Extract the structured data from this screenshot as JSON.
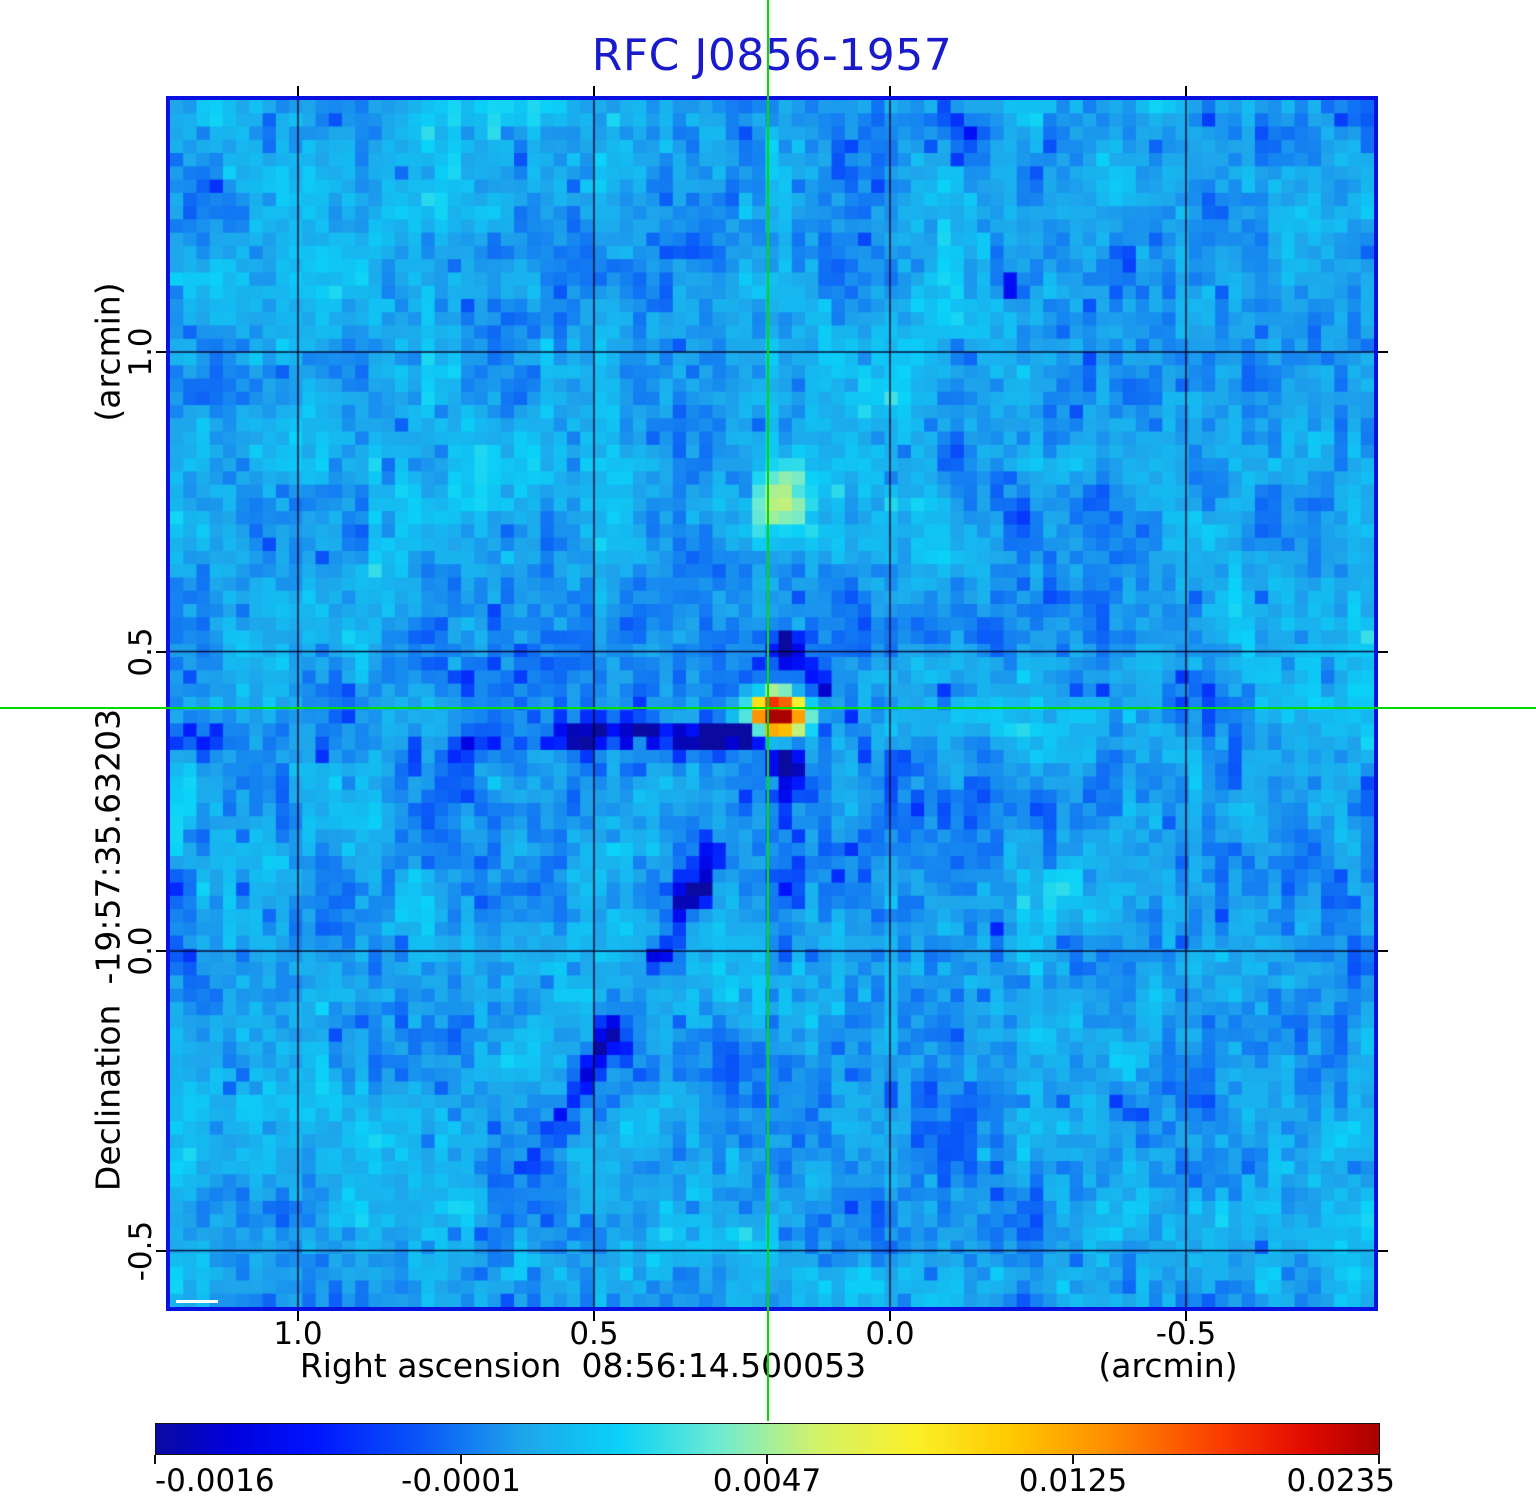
{
  "title": {
    "text": "RFC J0856-1957",
    "color": "#1a1acd"
  },
  "x_axis": {
    "name": "Right ascension",
    "coordinate": "08:56:14.500053",
    "unit": "(arcmin)",
    "ticks": [
      "1.0",
      "0.5",
      "0.0",
      "-0.5"
    ]
  },
  "y_axis": {
    "name": "Declination",
    "coordinate": "-19:57:35.63203",
    "unit": "(arcmin)",
    "ticks": [
      "1.0",
      "0.5",
      "0.0",
      "-0.5"
    ]
  },
  "colorbar": {
    "tick_labels": [
      "-0.0016",
      "-0.0001",
      "0.0047",
      "0.0125",
      "0.0235"
    ]
  },
  "chart_data": {
    "type": "heatmap",
    "title": "RFC J0856-1957",
    "xlabel": "Right ascension 08:56:14.500053 (arcmin)",
    "ylabel": "Declination -19:57:35.63203 (arcmin)",
    "x_ticks_arcmin": [
      1.0,
      0.5,
      0.0,
      -0.5
    ],
    "y_ticks_arcmin": [
      1.0,
      0.5,
      0.0,
      -0.5
    ],
    "x_range_arcmin": [
      1.22,
      -0.82
    ],
    "y_range_arcmin": [
      -0.59,
      1.42
    ],
    "grid_on": true,
    "crosshair": {
      "ra_offset_arcmin": 0.206,
      "dec_offset_arcmin": 0.406
    },
    "source": {
      "peak_value": 0.0235,
      "ra": "08:56:14.500053",
      "dec": "-19:57:35.63203"
    },
    "intensity_scale": {
      "tick_values": [
        -0.0016,
        -0.0001,
        0.0047,
        0.0125,
        0.0235
      ],
      "tick_positions": [
        0,
        0.25,
        0.5,
        0.75,
        1
      ]
    },
    "colors": {
      "title": "#1a1acd",
      "frame": "#0712e0",
      "crosshair": "#00dd00",
      "gridline": "rgba(2,2,40,0.9)",
      "tick": "#000000"
    },
    "colormap": [
      [
        0.0,
        [
          10,
          10,
          160
        ]
      ],
      [
        0.06,
        [
          0,
          0,
          220
        ]
      ],
      [
        0.13,
        [
          0,
          20,
          255
        ]
      ],
      [
        0.22,
        [
          10,
          90,
          248
        ]
      ],
      [
        0.3,
        [
          30,
          165,
          235
        ]
      ],
      [
        0.38,
        [
          10,
          210,
          248
        ]
      ],
      [
        0.46,
        [
          110,
          235,
          210
        ]
      ],
      [
        0.54,
        [
          210,
          242,
          105
        ]
      ],
      [
        0.62,
        [
          250,
          240,
          40
        ]
      ],
      [
        0.7,
        [
          255,
          200,
          0
        ]
      ],
      [
        0.78,
        [
          255,
          140,
          0
        ]
      ],
      [
        0.87,
        [
          250,
          60,
          0
        ]
      ],
      [
        0.94,
        [
          225,
          10,
          0
        ]
      ],
      [
        1.0,
        [
          170,
          0,
          0
        ]
      ]
    ],
    "axis_mapping": {
      "x_frac_at_zero": 0.598,
      "x_frac_per_arcmin": -0.4917,
      "y_frac_at_zero": 0.7051,
      "y_frac_per_arcmin": -0.4963
    },
    "render": {
      "grid": 91,
      "seed": 20230856,
      "base_p": 0.3,
      "coarse_cells": 14,
      "coarse_amp": 0.045,
      "medium_cells": 34,
      "medium_amp": 0.032,
      "cell_amp": 0.07,
      "chain": 0.5,
      "dark_cell_chance": 0.05,
      "dark_cell_drop": 0.05,
      "light_cell_chance": 0.04,
      "light_cell_boost": 0.038,
      "gaussians": [
        {
          "c": [
            45.2,
            45.85
          ],
          "amp": 0.025,
          "sx": 1.05,
          "sy": 1.0
        },
        {
          "c": [
            46.8,
            45.9
          ],
          "amp": 0.007,
          "sx": 0.9,
          "sy": 0.8
        },
        {
          "c": [
            45.5,
            29.8
          ],
          "amp": 0.0031,
          "sx": 1.9,
          "sy": 1.9
        },
        {
          "c": [
            42.6,
            45.8
          ],
          "amp": 0.0016,
          "sx": 1.7,
          "sy": 0.6
        },
        {
          "c": [
            45.9,
            41.0
          ],
          "amp": -0.0024,
          "sx": 0.8,
          "sy": 1.1
        },
        {
          "c": [
            43.0,
            47.3
          ],
          "amp": -0.0027,
          "sx": 0.85,
          "sy": 0.6
        },
        {
          "c": [
            46.3,
            49.6
          ],
          "amp": -0.0018,
          "sx": 0.8,
          "sy": 0.9
        },
        {
          "c": [
            42.6,
            28.5
          ],
          "amp": -0.0016,
          "sx": 0.8,
          "sy": 2.4
        },
        {
          "c": [
            48.6,
            43.4
          ],
          "amp": -0.0011,
          "sx": 0.7,
          "sy": 0.7
        },
        {
          "c": [
            36.0,
            52.5
          ],
          "amp": 0.001,
          "sx": 1.6,
          "sy": 1.3
        },
        {
          "c": [
            34.0,
            87.5
          ],
          "amp": 0.0012,
          "sx": 1.8,
          "sy": 1.4
        },
        {
          "c": [
            24.0,
            43.0
          ],
          "amp": -0.0007,
          "sx": 2.5,
          "sy": 1.2
        },
        {
          "c": [
            2.0,
            47.0
          ],
          "amp": -0.0012,
          "sx": 1.5,
          "sy": 1.5
        },
        {
          "c": [
            52.0,
            89.0
          ],
          "amp": 0.001,
          "sx": 2.2,
          "sy": 1.2
        }
      ],
      "streaks": [
        {
          "from": [
            30.0,
            47.4
          ],
          "to": [
            43.8,
            47.2
          ],
          "depth": -0.0021,
          "width": 0.8
        },
        {
          "from": [
            11.0,
            48.6
          ],
          "to": [
            30.0,
            47.8
          ],
          "depth": -0.0009,
          "width": 0.9
        },
        {
          "from": [
            49.5,
            44.4
          ],
          "to": [
            78.0,
            43.6
          ],
          "depth": -0.0006,
          "width": 0.75
        },
        {
          "from": [
            40.5,
            57.0
          ],
          "to": [
            21.0,
            90.5
          ],
          "depth": -0.001,
          "width": 0.95
        },
        {
          "from": [
            43.0,
            52.0
          ],
          "to": [
            29.5,
            77.0
          ],
          "depth": -0.0006,
          "width": 0.85
        },
        {
          "from": [
            47.5,
            51.5
          ],
          "to": [
            52.5,
            60.0
          ],
          "depth": -0.0007,
          "width": 0.8
        },
        {
          "from": [
            58.8,
            0.5
          ],
          "to": [
            64.5,
            17.5
          ],
          "depth": -0.0008,
          "width": 0.75
        },
        {
          "from": [
            66.5,
            1.5
          ],
          "to": [
            72.5,
            14.0
          ],
          "depth": -0.0006,
          "width": 0.75
        },
        {
          "from": [
            45.5,
            49.5
          ],
          "to": [
            45.9,
            63.0
          ],
          "depth": -0.0008,
          "width": 0.85
        },
        {
          "from": [
            45.2,
            32.5
          ],
          "to": [
            45.3,
            40.0
          ],
          "depth": -0.0007,
          "width": 0.7
        },
        {
          "from": [
            50.5,
            46.8
          ],
          "to": [
            57.0,
            52.5
          ],
          "depth": -0.0005,
          "width": 0.9
        },
        {
          "from": [
            61.0,
            62.0
          ],
          "to": [
            70.0,
            74.0
          ],
          "depth": -0.0004,
          "width": 1.1
        }
      ]
    }
  }
}
